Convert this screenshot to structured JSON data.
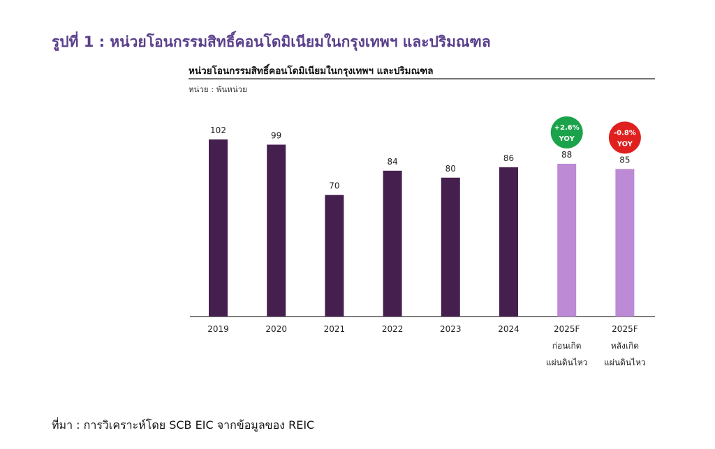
{
  "figure_title": "รูปที่ 1 : หน่วยโอนกรรมสิทธิ์คอนโดมิเนียมในกรุงเทพฯ และปริมณฑล",
  "source": "ที่มา : การวิเคราะห์โดย SCB EIC จากข้อมูลของ REIC",
  "colors": {
    "title": "#5a3f8c",
    "bar_actual": "#45204f",
    "bar_forecast": "#bd8ad6",
    "badge_up": "#1aa34a",
    "badge_down": "#e0201e"
  },
  "chart_data": {
    "type": "bar",
    "title": "หน่วยโอนกรรมสิทธิ์คอนโดมิเนียมในกรุงเทพฯ และปริมณฑล",
    "unit_label": "หน่วย : พันหน่วย",
    "ylim": [
      0,
      120
    ],
    "grid": false,
    "categories": [
      {
        "label": "2019",
        "sub": []
      },
      {
        "label": "2020",
        "sub": []
      },
      {
        "label": "2021",
        "sub": []
      },
      {
        "label": "2022",
        "sub": []
      },
      {
        "label": "2023",
        "sub": []
      },
      {
        "label": "2024",
        "sub": []
      },
      {
        "label": "2025F",
        "sub": [
          "ก่อนเกิด",
          "แผ่นดินไหว"
        ]
      },
      {
        "label": "2025F",
        "sub": [
          "หลังเกิด",
          "แผ่นดินไหว"
        ]
      }
    ],
    "values": [
      102,
      99,
      70,
      84,
      80,
      86,
      88,
      85
    ],
    "forecast": [
      false,
      false,
      false,
      false,
      false,
      false,
      true,
      true
    ],
    "badges": [
      null,
      null,
      null,
      null,
      null,
      null,
      {
        "pct": "+2.6%",
        "text": "YOY",
        "direction": "up"
      },
      {
        "pct": "-0.8%",
        "text": "YOY",
        "direction": "down"
      }
    ]
  }
}
